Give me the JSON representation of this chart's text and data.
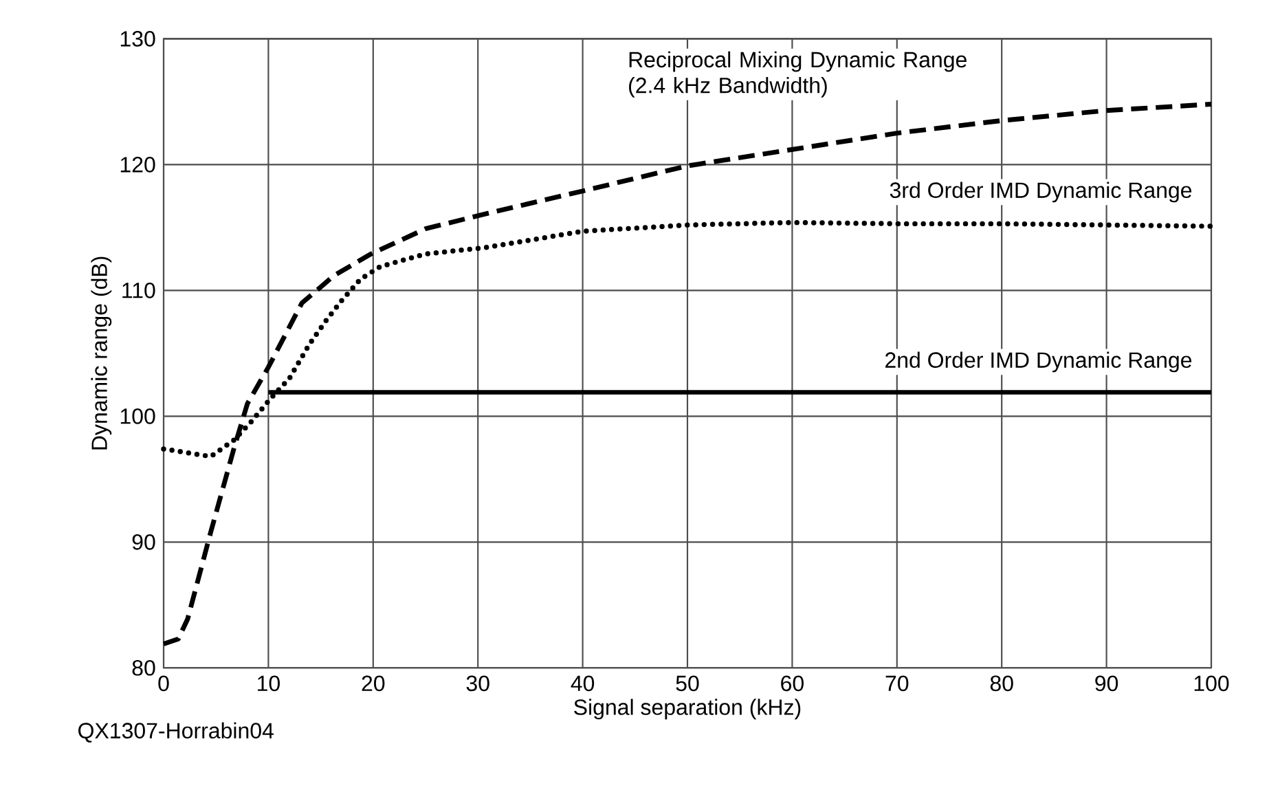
{
  "chart_data": {
    "type": "line",
    "xlabel": "Signal separation (kHz)",
    "ylabel": "Dynamic range (dB)",
    "xlim": [
      0,
      100
    ],
    "ylim": [
      80,
      130
    ],
    "xticks": [
      0,
      10,
      20,
      30,
      40,
      50,
      60,
      70,
      80,
      90,
      100
    ],
    "yticks": [
      80,
      90,
      100,
      110,
      120,
      130
    ],
    "grid": true,
    "legend": false,
    "annotations": [
      "QX1307-Horrabin04"
    ],
    "series": [
      {
        "name": "Reciprocal Mixing Dynamic Range (2.4 kHz Bandwidth)",
        "color": "#000000",
        "line_style": "dashed",
        "x": [
          0,
          1.4,
          2.3,
          4.5,
          6.7,
          8.0,
          10.0,
          13.2,
          16.3,
          19.8,
          25.0,
          30.3,
          40,
          50,
          60,
          70,
          80,
          90,
          100
        ],
        "values": [
          81.9,
          82.3,
          83.9,
          90.8,
          97.4,
          101.0,
          103.9,
          109.0,
          111.2,
          112.9,
          114.9,
          116.0,
          117.9,
          119.9,
          121.2,
          122.5,
          123.5,
          124.3,
          124.8
        ]
      },
      {
        "name": "3rd Order IMD Dynamic Range",
        "color": "#000000",
        "line_style": "dotted",
        "x": [
          0,
          4.5,
          6.7,
          8.4,
          10.2,
          12.0,
          13.9,
          15.5,
          17.0,
          18.8,
          20.7,
          25.0,
          30.7,
          40,
          50,
          60,
          70,
          80,
          90,
          100
        ],
        "values": [
          97.4,
          96.8,
          98.1,
          99.6,
          101.4,
          103.0,
          105.7,
          107.6,
          109.2,
          110.9,
          111.9,
          112.9,
          113.4,
          114.7,
          115.2,
          115.4,
          115.3,
          115.3,
          115.2,
          115.1
        ]
      },
      {
        "name": "2nd Order IMD Dynamic Range",
        "color": "#000000",
        "line_style": "solid",
        "x": [
          10,
          100
        ],
        "values": [
          101.9,
          101.9
        ]
      }
    ]
  }
}
